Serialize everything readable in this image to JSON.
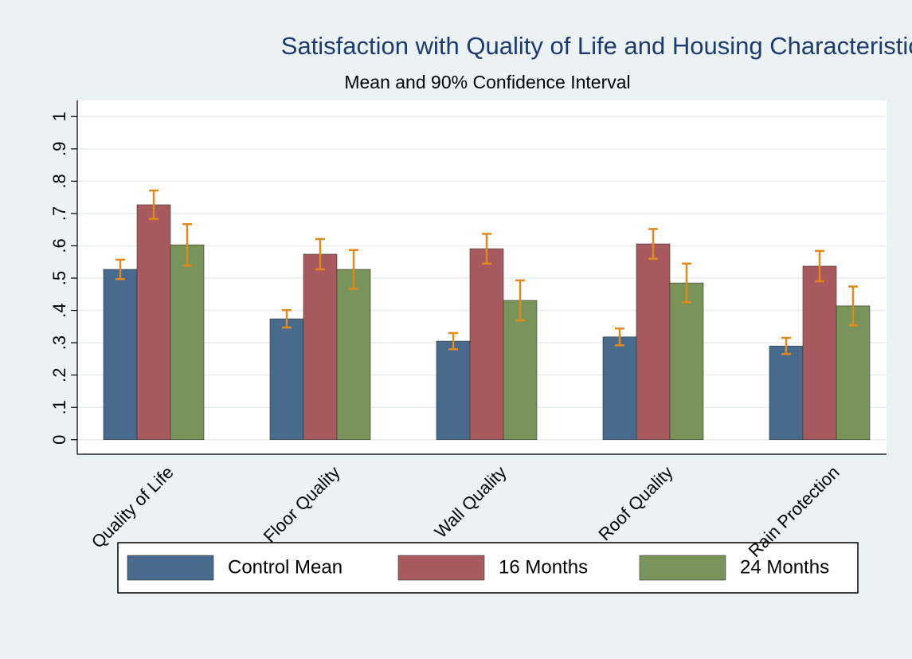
{
  "chart_data": {
    "type": "bar",
    "title": "Satisfaction with Quality of Life and Housing Characteristics",
    "subtitle": "Mean and 90% Confidence Interval",
    "categories": [
      "Quality of Life",
      "Floor Quality",
      "Wall Quality",
      "Roof Quality",
      "Rain Protection"
    ],
    "series": [
      {
        "name": "Control Mean",
        "color": "#476a8d",
        "values": [
          0.527,
          0.374,
          0.305,
          0.318,
          0.29
        ],
        "errors": [
          0.03,
          0.027,
          0.025,
          0.026,
          0.025
        ]
      },
      {
        "name": "16 Months",
        "color": "#a95a5e",
        "values": [
          0.727,
          0.574,
          0.591,
          0.606,
          0.537
        ],
        "errors": [
          0.044,
          0.047,
          0.046,
          0.046,
          0.047
        ]
      },
      {
        "name": "24 Months",
        "color": "#79945a",
        "values": [
          0.603,
          0.527,
          0.431,
          0.485,
          0.414
        ],
        "errors": [
          0.064,
          0.06,
          0.062,
          0.06,
          0.06
        ]
      }
    ],
    "error_color": "#e0891f",
    "ylim": [
      -0.045,
      1.05
    ],
    "yticks": [
      0,
      {
        "value": 0.1,
        "label": ".1"
      },
      {
        "value": 0.2,
        "label": ".2"
      },
      {
        "value": 0.3,
        "label": ".3"
      },
      {
        "value": 0.4,
        "label": ".4"
      },
      {
        "value": 0.5,
        "label": ".5"
      },
      {
        "value": 0.6,
        "label": ".6"
      },
      {
        "value": 0.7,
        "label": ".7"
      },
      {
        "value": 0.8,
        "label": ".8"
      },
      {
        "value": 0.9,
        "label": ".9"
      },
      1
    ],
    "grid": true
  }
}
